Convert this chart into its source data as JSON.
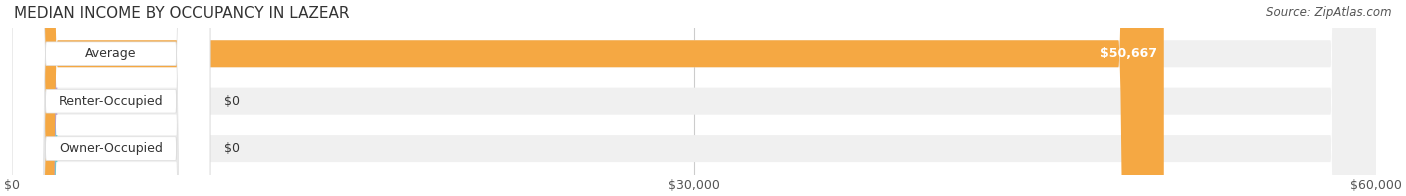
{
  "title": "MEDIAN INCOME BY OCCUPANCY IN LAZEAR",
  "source": "Source: ZipAtlas.com",
  "categories": [
    "Owner-Occupied",
    "Renter-Occupied",
    "Average"
  ],
  "values": [
    0,
    0,
    50667
  ],
  "bar_colors": [
    "#6ecaca",
    "#b8a0cc",
    "#f5a843"
  ],
  "bar_bg_color": "#f0f0f0",
  "label_bg_color": "#ffffff",
  "bar_height": 0.55,
  "xlim": [
    0,
    60000
  ],
  "xticks": [
    0,
    30000,
    60000
  ],
  "xtick_labels": [
    "$0",
    "$30,000",
    "$60,000"
  ],
  "value_labels": [
    "$0",
    "$0",
    "$50,667"
  ],
  "title_fontsize": 11,
  "source_fontsize": 8.5,
  "label_fontsize": 9,
  "tick_fontsize": 9,
  "bg_color": "#ffffff",
  "grid_color": "#cccccc"
}
